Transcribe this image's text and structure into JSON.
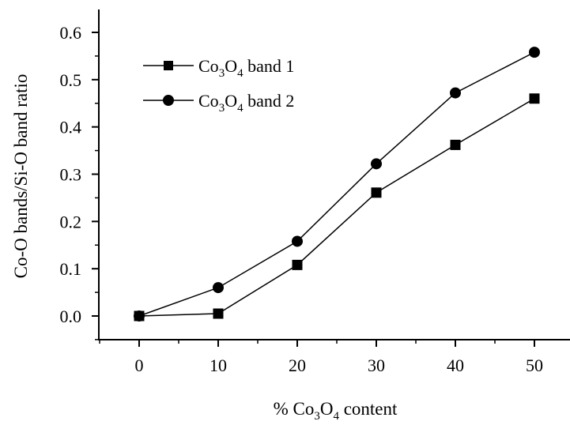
{
  "chart_data": {
    "type": "line",
    "xlabel": {
      "pre": "% Co",
      "s1": "3",
      "mid": "O",
      "s2": "4",
      "post": " content"
    },
    "ylabel": "Co-O bands/Si-O band ratio",
    "xlim": [
      -5,
      54
    ],
    "ylim": [
      -0.05,
      0.65
    ],
    "x_ticks": [
      "0",
      "10",
      "20",
      "30",
      "40",
      "50"
    ],
    "y_ticks": [
      "0.0",
      "0.1",
      "0.2",
      "0.3",
      "0.4",
      "0.5",
      "0.6"
    ],
    "x": [
      0,
      10,
      20,
      30,
      40,
      50
    ],
    "series": [
      {
        "name": "Co3O4 band 1",
        "label": {
          "pre": "Co",
          "s1": "3",
          "mid": "O",
          "s2": "4",
          "post": " band 1"
        },
        "marker": "square",
        "color": "#000000",
        "values": [
          0.0,
          0.005,
          0.108,
          0.261,
          0.362,
          0.46
        ]
      },
      {
        "name": "Co3O4 band 2",
        "label": {
          "pre": "Co",
          "s1": "3",
          "mid": "O",
          "s2": "4",
          "post": " band 2"
        },
        "marker": "circle",
        "color": "#000000",
        "values": [
          0.0,
          0.06,
          0.158,
          0.322,
          0.472,
          0.558
        ]
      }
    ],
    "grid": false,
    "legend": "top-left"
  }
}
